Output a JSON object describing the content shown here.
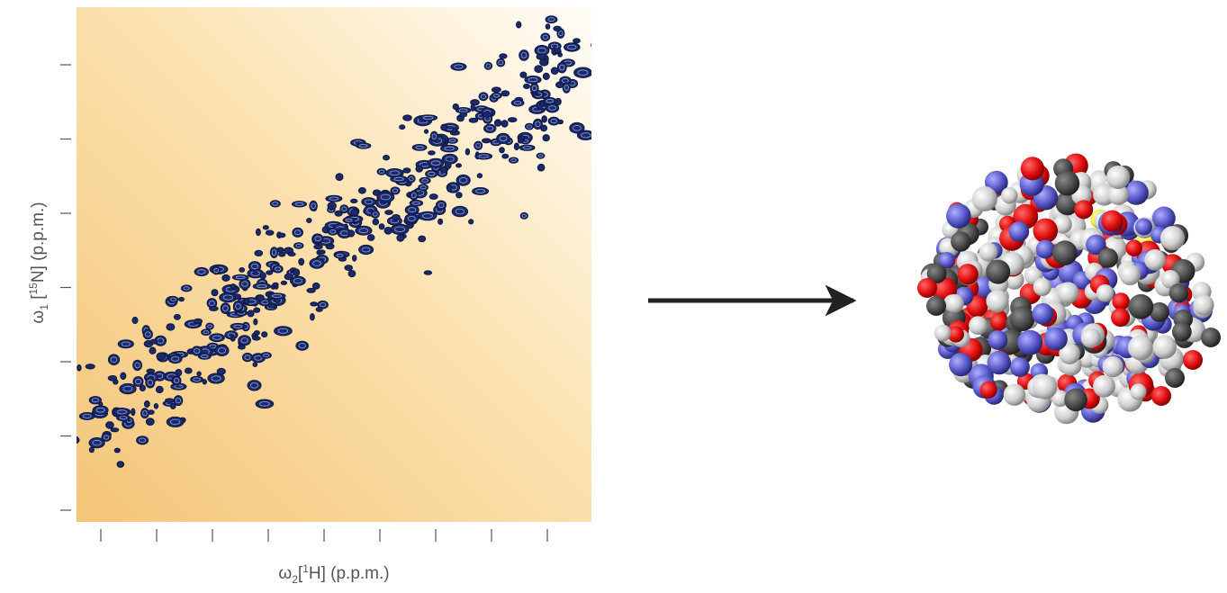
{
  "figure": {
    "y_axis_label": [
      "ω",
      "1",
      " [",
      "15",
      "N] (p.p.m.)"
    ],
    "x_axis_label": [
      "ω",
      "2",
      "[",
      "1",
      "H] (p.p.m.)"
    ]
  }
}
